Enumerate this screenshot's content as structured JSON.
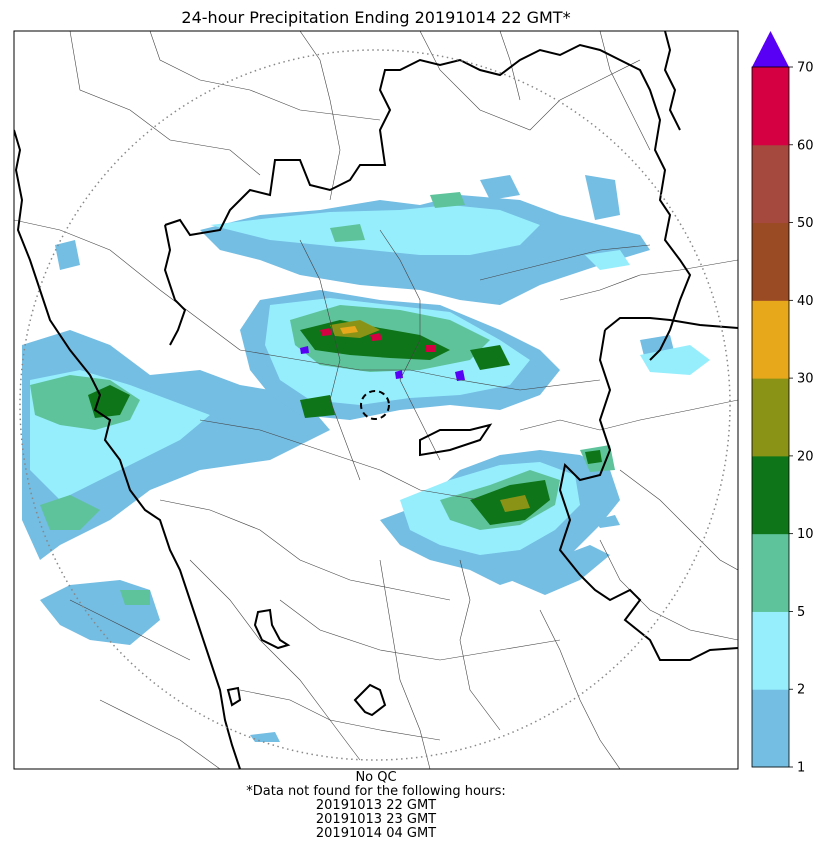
{
  "title": "24-hour Precipitation Ending 20191014 22 GMT*",
  "colorbar": {
    "ticks": [
      "1",
      "2",
      "5",
      "10",
      "20",
      "30",
      "40",
      "50",
      "60",
      "70"
    ],
    "colors": [
      "#74bde3",
      "#96eefd",
      "#5ec39b",
      "#0e7519",
      "#8b9317",
      "#e8a81c",
      "#9b4b24",
      "#a5483d",
      "#d40041"
    ],
    "extend_color": "#5800f5"
  },
  "footer": {
    "qc": "No QC",
    "note": "*Data not found for the following hours:",
    "missing_hours": [
      "20191013 22 GMT",
      "20191013 23 GMT",
      "20191014 04 GMT"
    ]
  }
}
